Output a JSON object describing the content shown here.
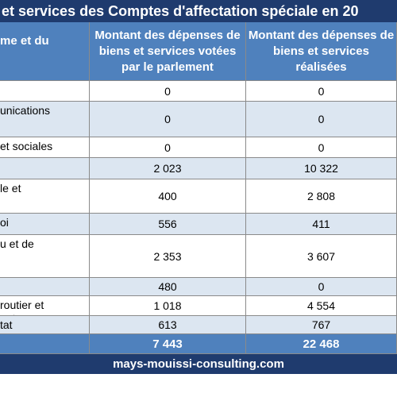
{
  "header": {
    "title": "et services des Comptes d'affectation spéciale en 20"
  },
  "table": {
    "columns": [
      "me et du",
      "Montant des dépenses de biens et services votées par le parlement",
      "Montant des dépenses de biens et services réalisées"
    ],
    "rows": [
      [
        null,
        "0",
        "0"
      ],
      [
        "unications",
        "0",
        "0"
      ],
      [
        "et sociales",
        "0",
        "0"
      ],
      [
        null,
        "2 023",
        "10 322"
      ],
      [
        "le et",
        "400",
        "2 808"
      ],
      [
        "oi",
        "556",
        "411"
      ],
      [
        "u et de",
        "2 353",
        "3 607"
      ],
      [
        null,
        "480",
        "0"
      ],
      [
        "routier et\nants",
        "1 018",
        "4 554"
      ],
      [
        "tat",
        "613",
        "767"
      ]
    ],
    "total": [
      null,
      "7 443",
      "22 468"
    ]
  },
  "footer": {
    "text": "mays-mouissi-consulting.com"
  }
}
